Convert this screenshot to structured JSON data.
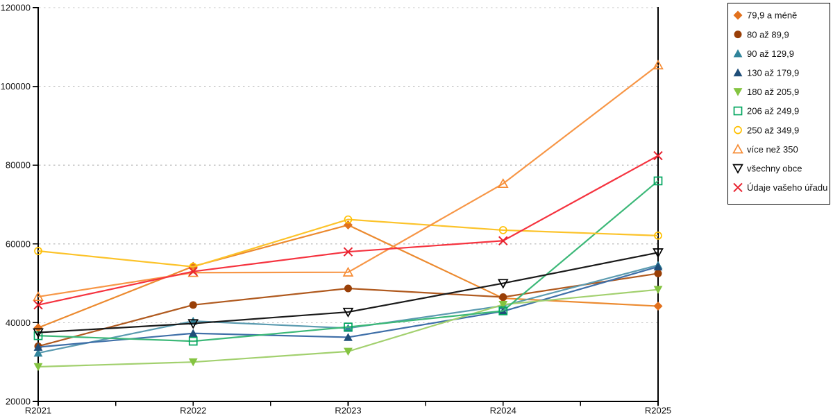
{
  "chart_data": {
    "type": "line",
    "title": "",
    "xlabel": "",
    "ylabel": "",
    "x": [
      "R2021",
      "R2022",
      "R2023",
      "R2024",
      "R2025"
    ],
    "ylim": [
      20000,
      120000
    ],
    "ytick_step": 20000,
    "yticks": [
      20000,
      40000,
      60000,
      80000,
      100000,
      120000
    ],
    "grid": "horizontal-dashed",
    "grid_color": "#c4c4c4",
    "legend_position": "right-outside",
    "legend_border_color": "#000000",
    "series": [
      {
        "name": "79,9 a méně",
        "marker": "diamond",
        "filled": true,
        "color": "#e2711d",
        "line_color": "#ec8a2f",
        "values": [
          38700,
          54300,
          64800,
          46200,
          44200
        ]
      },
      {
        "name": "80 až 89,9",
        "marker": "circle",
        "filled": true,
        "color": "#993f07",
        "line_color": "#b05a1f",
        "values": [
          34000,
          44500,
          48700,
          46500,
          52500
        ]
      },
      {
        "name": "90 až 129,9",
        "marker": "triangle-up",
        "filled": true,
        "color": "#31849b",
        "line_color": "#5b9bb0",
        "values": [
          32300,
          40400,
          38600,
          44300,
          54600
        ]
      },
      {
        "name": "130 až 179,9",
        "marker": "triangle-up",
        "filled": true,
        "color": "#1f4e79",
        "line_color": "#3f6fa8",
        "values": [
          33800,
          37300,
          36300,
          42900,
          54200
        ]
      },
      {
        "name": "180 až 205,9",
        "marker": "triangle-down",
        "filled": true,
        "color": "#84c441",
        "line_color": "#a2d06e",
        "values": [
          28800,
          30000,
          32700,
          44600,
          48400
        ]
      },
      {
        "name": "206 až 249,9",
        "marker": "square",
        "filled": false,
        "color": "#00a55f",
        "line_color": "#3cb878",
        "values": [
          36700,
          35300,
          38900,
          43000,
          76000
        ]
      },
      {
        "name": "250 až 349,9",
        "marker": "circle",
        "filled": false,
        "color": "#ffc000",
        "line_color": "#fcc32a",
        "values": [
          58200,
          54200,
          66200,
          63500,
          62100
        ]
      },
      {
        "name": "více než 350",
        "marker": "triangle-up",
        "filled": false,
        "color": "#f68b33",
        "line_color": "#f79646",
        "values": [
          46600,
          52700,
          52800,
          75300,
          105400
        ]
      },
      {
        "name": "všechny obce",
        "marker": "triangle-down",
        "filled": false,
        "color": "#000000",
        "line_color": "#1a1a1a",
        "values": [
          37500,
          39800,
          42700,
          50000,
          57800
        ]
      },
      {
        "name": "Údaje vašeho úřadu",
        "marker": "x",
        "filled": false,
        "color": "#e8212e",
        "line_color": "#f5333f",
        "values": [
          44500,
          53000,
          58000,
          60800,
          82400
        ]
      }
    ]
  }
}
